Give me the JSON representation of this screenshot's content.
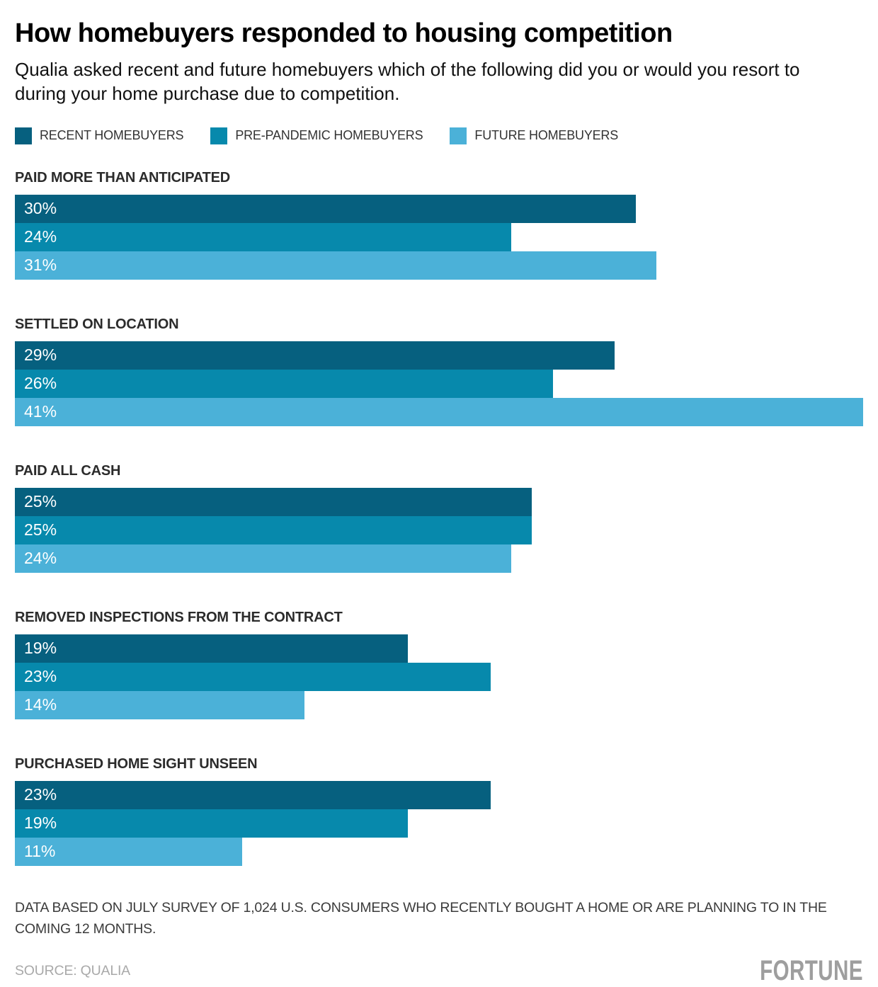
{
  "header": {
    "title": "How homebuyers responded to housing competition",
    "subtitle": "Qualia asked recent and future homebuyers which of the following did you or would you resort to during your home purchase due to competition."
  },
  "legend": [
    {
      "label": "RECENT HOMEBUYERS",
      "color": "#06607f"
    },
    {
      "label": "PRE-PANDEMIC HOMEBUYERS",
      "color": "#0789ac"
    },
    {
      "label": "FUTURE HOMEBUYERS",
      "color": "#4bb1d8"
    }
  ],
  "chart_data": {
    "type": "bar",
    "orientation": "horizontal",
    "title": "How homebuyers responded to housing competition",
    "categories": [
      "PAID MORE THAN ANTICIPATED",
      "SETTLED ON LOCATION",
      "PAID ALL CASH",
      "REMOVED INSPECTIONS FROM THE CONTRACT",
      "PURCHASED HOME SIGHT UNSEEN"
    ],
    "series": [
      {
        "name": "RECENT HOMEBUYERS",
        "color": "#06607f",
        "values": [
          30,
          29,
          25,
          19,
          23
        ]
      },
      {
        "name": "PRE-PANDEMIC HOMEBUYERS",
        "color": "#0789ac",
        "values": [
          24,
          26,
          25,
          23,
          19
        ]
      },
      {
        "name": "FUTURE HOMEBUYERS",
        "color": "#4bb1d8",
        "values": [
          31,
          41,
          24,
          14,
          11
        ]
      }
    ],
    "value_suffix": "%",
    "value_labels_shown": true,
    "axis_max": 41,
    "grid": false,
    "legend_position": "top"
  },
  "footer": {
    "note": "DATA BASED ON JULY SURVEY OF 1,024 U.S. CONSUMERS WHO RECENTLY BOUGHT A HOME OR ARE PLANNING TO IN THE COMING 12 MONTHS.",
    "source": "SOURCE: QUALIA",
    "brand": "FORTUNE"
  }
}
